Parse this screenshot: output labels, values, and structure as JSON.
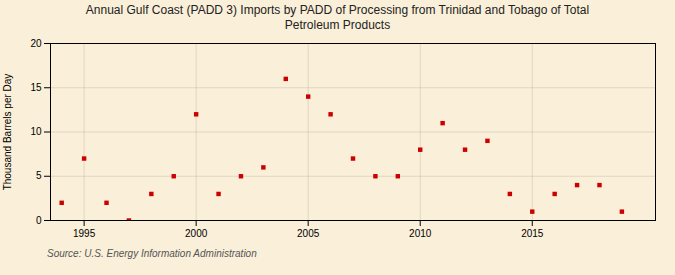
{
  "chart_data": {
    "type": "scatter",
    "title": "Annual Gulf Coast (PADD 3) Imports by PADD of Processing from Trinidad and Tobago of Total\nPetroleum Products",
    "ylabel": "Thousand Barrels per Day",
    "source": "Source: U.S. Energy Information Administration",
    "x": [
      1994,
      1995,
      1996,
      1997,
      1998,
      1999,
      2000,
      2001,
      2002,
      2003,
      2004,
      2005,
      2006,
      2007,
      2008,
      2009,
      2010,
      2011,
      2012,
      2013,
      2014,
      2015,
      2016,
      2017,
      2018,
      2019
    ],
    "values": [
      2,
      7,
      2,
      0,
      3,
      5,
      12,
      3,
      5,
      6,
      16,
      14,
      12,
      7,
      5,
      5,
      8,
      11,
      8,
      9,
      3,
      1,
      3,
      4,
      4,
      1
    ],
    "color": "#cc0000",
    "marker": "square",
    "xlim": [
      1993.5,
      2020.5
    ],
    "xticks": [
      1995,
      2000,
      2005,
      2010,
      2015
    ],
    "ylim": [
      0,
      20
    ],
    "yticks": [
      0,
      5,
      10,
      15,
      20
    ],
    "grid": true
  }
}
